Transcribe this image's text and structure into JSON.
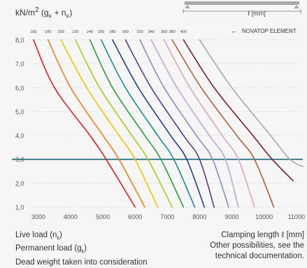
{
  "header": {
    "unit_main": "kN/m",
    "unit_sup": "2",
    "unit_open": " (g",
    "unit_sub1": "K",
    "unit_plus": " + n",
    "unit_sub2": "K",
    "unit_close": ")",
    "span_label": "ℓ [mm]"
  },
  "legend": {
    "arrow": "←",
    "text": "NOVATOP ELEMENT"
  },
  "footer": {
    "live_load": "Live load (n",
    "live_sub": "k",
    "permanent_load": "Permanent load (g",
    "perm_sub": "k",
    "dead_weight": "Dead weight taken into consideration",
    "clamping": "Clamping length",
    "clamping_symbol": "ℓ [mm]",
    "other": "Other possibilities, see the",
    "technical": "technical documentation."
  },
  "chart_data": {
    "type": "line",
    "xlabel": "Clamping length ℓ [mm]",
    "ylabel": "kN/m² (gK + nK)",
    "xlim": [
      2700,
      11200
    ],
    "ylim": [
      1.0,
      8.0
    ],
    "x_ticks": [
      3000,
      4000,
      5000,
      6000,
      7000,
      8000,
      9000,
      10000,
      11000
    ],
    "x_tick_labels": [
      "3000",
      "4000",
      "5000",
      "6000",
      "7000",
      "8000",
      "9000",
      "10000",
      "11000"
    ],
    "y_ticks": [
      1.0,
      2.0,
      3.0,
      4.0,
      5.0,
      6.0,
      7.0,
      8.0
    ],
    "y_tick_labels": [
      "1,0",
      "2,0",
      "3,0",
      "4,0",
      "5,0",
      "6,0",
      "7,0",
      "8,0"
    ],
    "grid": "horizontal",
    "reference_line": {
      "y": 3.0,
      "color": "#1a6478"
    },
    "series": [
      {
        "name": "160",
        "color": "#e31e24",
        "points": [
          [
            2850,
            8.0
          ],
          [
            3500,
            6.0
          ],
          [
            4600,
            4.0
          ],
          [
            5100,
            3.0
          ],
          [
            6000,
            1.0
          ]
        ]
      },
      {
        "name": "180",
        "color": "#f07f1e",
        "points": [
          [
            3300,
            8.0
          ],
          [
            4000,
            6.0
          ],
          [
            5000,
            4.0
          ],
          [
            5500,
            3.0
          ],
          [
            6300,
            1.0
          ]
        ]
      },
      {
        "name": "200",
        "color": "#f2c500",
        "points": [
          [
            3700,
            8.0
          ],
          [
            4500,
            6.0
          ],
          [
            5500,
            4.0
          ],
          [
            6000,
            3.0
          ],
          [
            6700,
            1.0
          ]
        ]
      },
      {
        "name": "220",
        "color": "#a8c81e",
        "points": [
          [
            4150,
            8.0
          ],
          [
            4900,
            6.0
          ],
          [
            5900,
            4.0
          ],
          [
            6400,
            3.0
          ],
          [
            7150,
            1.0
          ]
        ]
      },
      {
        "name": "240",
        "color": "#2e9a3a",
        "points": [
          [
            4600,
            8.0
          ],
          [
            5300,
            6.0
          ],
          [
            6300,
            4.0
          ],
          [
            6800,
            3.0
          ],
          [
            7500,
            1.0
          ]
        ]
      },
      {
        "name": "260",
        "color": "#1b8a8a",
        "points": [
          [
            4950,
            8.0
          ],
          [
            5700,
            6.0
          ],
          [
            6700,
            4.0
          ],
          [
            7200,
            3.0
          ],
          [
            7850,
            1.0
          ]
        ]
      },
      {
        "name": "280",
        "color": "#1f3f8c",
        "points": [
          [
            5300,
            8.0
          ],
          [
            6100,
            6.0
          ],
          [
            7100,
            4.0
          ],
          [
            7600,
            3.0
          ],
          [
            8150,
            1.0
          ]
        ]
      },
      {
        "name": "300",
        "color": "#5a3591",
        "points": [
          [
            5700,
            8.0
          ],
          [
            6500,
            6.0
          ],
          [
            7500,
            4.0
          ],
          [
            8000,
            3.0
          ],
          [
            8450,
            1.0
          ]
        ]
      },
      {
        "name": "320",
        "color": "#8f86c2",
        "points": [
          [
            6150,
            8.0
          ],
          [
            6900,
            6.0
          ],
          [
            7900,
            4.0
          ],
          [
            8400,
            3.0
          ],
          [
            8900,
            1.0
          ]
        ]
      },
      {
        "name": "340",
        "color": "#bfa5d6",
        "points": [
          [
            6500,
            8.0
          ],
          [
            7300,
            6.0
          ],
          [
            8300,
            4.0
          ],
          [
            8800,
            3.0
          ],
          [
            9200,
            1.0
          ]
        ]
      },
      {
        "name": "360",
        "color": "#d8a6bf",
        "points": [
          [
            6900,
            8.0
          ],
          [
            7700,
            6.0
          ],
          [
            8700,
            4.0
          ],
          [
            9200,
            3.0
          ],
          [
            9700,
            1.0
          ]
        ]
      },
      {
        "name": "380",
        "color": "#b05d3a",
        "points": [
          [
            7150,
            8.0
          ],
          [
            8050,
            6.0
          ],
          [
            9150,
            4.0
          ],
          [
            9700,
            3.0
          ],
          [
            10300,
            1.0
          ]
        ]
      },
      {
        "name": "400",
        "color": "#7a1f26",
        "points": [
          [
            7500,
            8.0
          ],
          [
            8450,
            6.0
          ],
          [
            9650,
            4.0
          ],
          [
            10250,
            3.0
          ],
          [
            10900,
            2.1
          ]
        ]
      },
      {
        "name": "NOVATOP ELEMENT",
        "color": "#a8a8a8",
        "points": [
          [
            8000,
            8.0
          ],
          [
            9000,
            6.0
          ],
          [
            10200,
            4.0
          ],
          [
            10800,
            3.0
          ],
          [
            11200,
            2.7
          ]
        ]
      }
    ]
  }
}
